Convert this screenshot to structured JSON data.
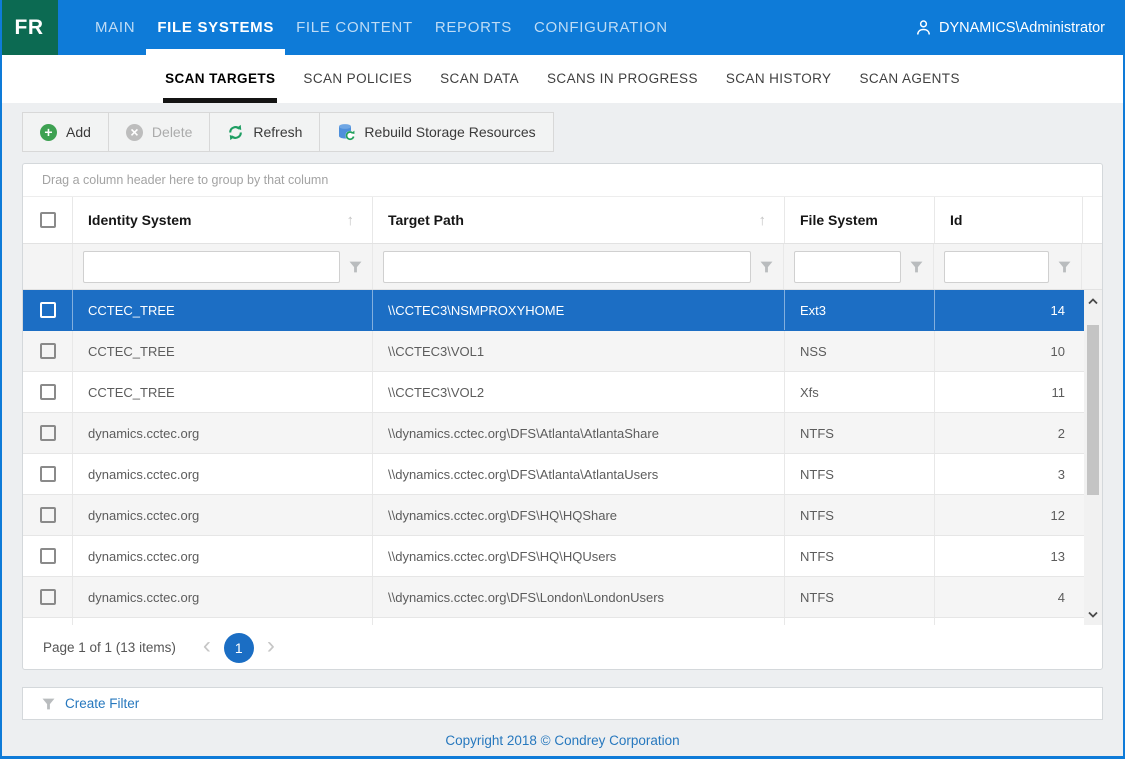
{
  "brand": {
    "logo": "FR"
  },
  "colors": {
    "nav_blue": "#0E7BD8",
    "logo_green": "#0C6A52",
    "selected_row_blue": "#1C6EC4",
    "link_blue": "#2778BE",
    "add_green": "#3EA152",
    "refresh_green": "#1E9E62"
  },
  "top_nav": {
    "items": [
      {
        "label": "MAIN",
        "active": false
      },
      {
        "label": "FILE SYSTEMS",
        "active": true
      },
      {
        "label": "FILE CONTENT",
        "active": false
      },
      {
        "label": "REPORTS",
        "active": false
      },
      {
        "label": "CONFIGURATION",
        "active": false
      }
    ],
    "user": "DYNAMICS\\Administrator",
    "user_icon": "person-icon"
  },
  "sub_nav": {
    "tabs": [
      {
        "label": "SCAN TARGETS",
        "active": true
      },
      {
        "label": "SCAN POLICIES",
        "active": false
      },
      {
        "label": "SCAN DATA",
        "active": false
      },
      {
        "label": "SCANS IN PROGRESS",
        "active": false
      },
      {
        "label": "SCAN HISTORY",
        "active": false
      },
      {
        "label": "SCAN AGENTS",
        "active": false
      }
    ]
  },
  "toolbar": {
    "buttons": [
      {
        "name": "add-button",
        "label": "Add",
        "icon": "add-circle-icon",
        "disabled": false
      },
      {
        "name": "delete-button",
        "label": "Delete",
        "icon": "delete-circle-icon",
        "disabled": true
      },
      {
        "name": "refresh-button",
        "label": "Refresh",
        "icon": "refresh-icon",
        "disabled": false
      },
      {
        "name": "rebuild-storage-resources-button",
        "label": "Rebuild Storage Resources",
        "icon": "rebuild-storage-icon",
        "disabled": false
      }
    ]
  },
  "grid": {
    "group_hint": "Drag a column header here to group by that column",
    "columns": [
      {
        "label": "Identity System",
        "sort": "asc"
      },
      {
        "label": "Target Path",
        "sort": "asc"
      },
      {
        "label": "File System"
      },
      {
        "label": "Id"
      }
    ],
    "rows": [
      {
        "identity_system": "CCTEC_TREE",
        "target_path": "\\\\CCTEC3\\NSMPROXYHOME",
        "file_system": "Ext3",
        "id": "14",
        "selected": true
      },
      {
        "identity_system": "CCTEC_TREE",
        "target_path": "\\\\CCTEC3\\VOL1",
        "file_system": "NSS",
        "id": "10",
        "selected": false
      },
      {
        "identity_system": "CCTEC_TREE",
        "target_path": "\\\\CCTEC3\\VOL2",
        "file_system": "Xfs",
        "id": "11",
        "selected": false
      },
      {
        "identity_system": "dynamics.cctec.org",
        "target_path": "\\\\dynamics.cctec.org\\DFS\\Atlanta\\AtlantaShare",
        "file_system": "NTFS",
        "id": "2",
        "selected": false
      },
      {
        "identity_system": "dynamics.cctec.org",
        "target_path": "\\\\dynamics.cctec.org\\DFS\\Atlanta\\AtlantaUsers",
        "file_system": "NTFS",
        "id": "3",
        "selected": false
      },
      {
        "identity_system": "dynamics.cctec.org",
        "target_path": "\\\\dynamics.cctec.org\\DFS\\HQ\\HQShare",
        "file_system": "NTFS",
        "id": "12",
        "selected": false
      },
      {
        "identity_system": "dynamics.cctec.org",
        "target_path": "\\\\dynamics.cctec.org\\DFS\\HQ\\HQUsers",
        "file_system": "NTFS",
        "id": "13",
        "selected": false
      },
      {
        "identity_system": "dynamics.cctec.org",
        "target_path": "\\\\dynamics.cctec.org\\DFS\\London\\LondonUsers",
        "file_system": "NTFS",
        "id": "4",
        "selected": false
      }
    ],
    "pager": {
      "summary": "Page 1 of 1 (13 items)",
      "page": "1"
    }
  },
  "filter_bar": {
    "label": "Create Filter",
    "icon": "filter-funnel-icon"
  },
  "footer": {
    "copyright": "Copyright 2018 © Condrey Corporation"
  }
}
